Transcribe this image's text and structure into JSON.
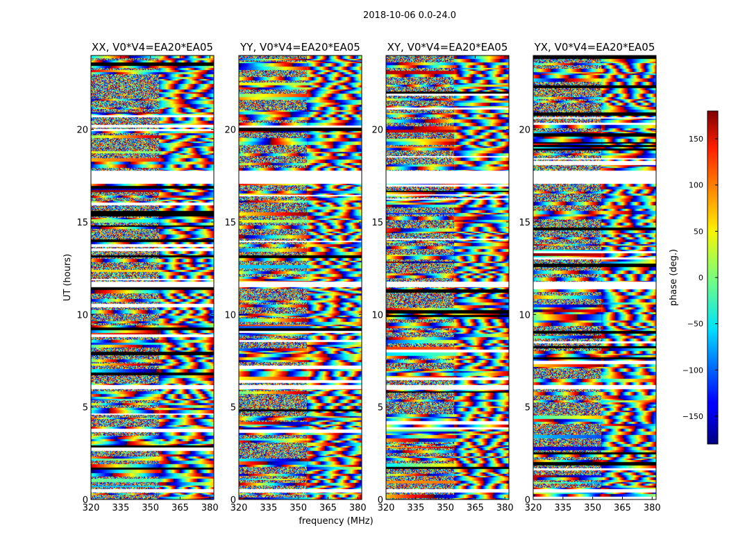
{
  "suptitle": "2018-10-06 0.0-24.0",
  "chart_data": {
    "type": "heatmap",
    "colormap": "jet",
    "xlabel": "frequency (MHz)",
    "ylabel": "UT (hours)",
    "colorbar_label": "phase (deg.)",
    "xlim": [
      320,
      382
    ],
    "ylim": [
      0,
      24
    ],
    "x_ticks": [
      320,
      335,
      350,
      365,
      380
    ],
    "y_ticks": [
      0,
      5,
      10,
      15,
      20
    ],
    "x_tick_labels": [
      "320",
      "335",
      "350",
      "365",
      "380"
    ],
    "y_tick_labels": [
      "0",
      "5",
      "10",
      "15",
      "20"
    ],
    "clim": [
      -180,
      180
    ],
    "colorbar_ticks": [
      150,
      100,
      50,
      0,
      -50,
      -100,
      -150
    ],
    "colorbar_tick_labels": [
      "150",
      "100",
      "50",
      "0",
      "−50",
      "−100",
      "−150"
    ],
    "blank_rows_hours": [
      [
        17.1,
        17.8
      ],
      [
        11.5,
        11.8
      ],
      [
        6.0,
        6.2
      ],
      [
        0.4,
        0.6
      ]
    ],
    "panels": [
      {
        "polarization": "XX",
        "title": "XX, V0*V4=EA20*EA05"
      },
      {
        "polarization": "YY",
        "title": "YY, V0*V4=EA20*EA05"
      },
      {
        "polarization": "XY",
        "title": "XY, V0*V4=EA20*EA05"
      },
      {
        "polarization": "YX",
        "title": "YX, V0*V4=EA20*EA05"
      }
    ]
  }
}
